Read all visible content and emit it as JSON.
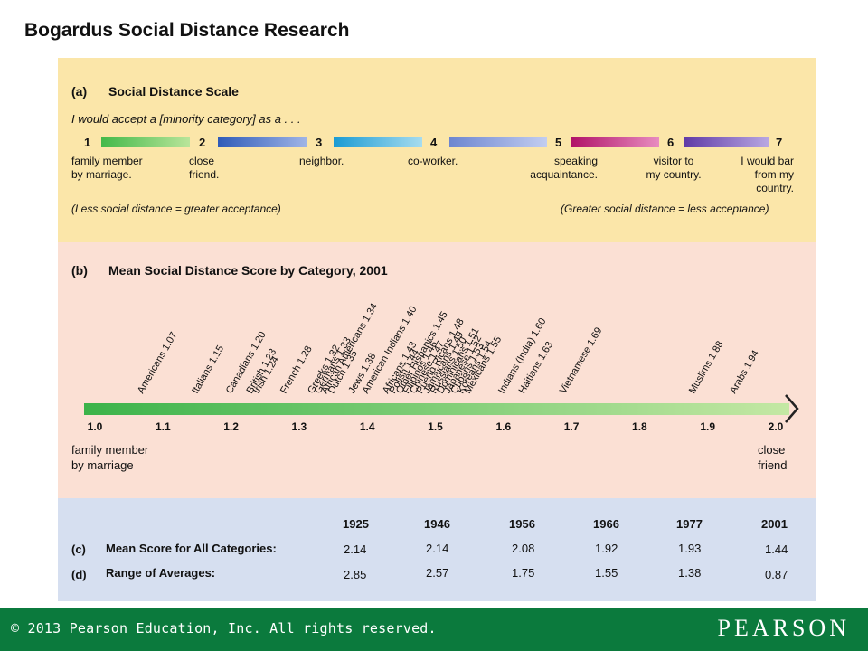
{
  "title": "Bogardus Social Distance Research",
  "panel_a": {
    "letter": "(a)",
    "heading": "Social Distance Scale",
    "prompt": "I would accept a [minority category] as a . . .",
    "steps": [
      {
        "num": "1",
        "label": "family member\nby marriage.",
        "color_start": "#43b94a",
        "color_end": "#b9e59a"
      },
      {
        "num": "2",
        "label": "close\nfriend.",
        "color_start": "#2f5bb8",
        "color_end": "#9fb4e6"
      },
      {
        "num": "3",
        "label": "neighbor.",
        "color_start": "#1a9bd3",
        "color_end": "#a6dcef"
      },
      {
        "num": "4",
        "label": "co-worker.",
        "color_start": "#6d86d0",
        "color_end": "#c2cdf0"
      },
      {
        "num": "5",
        "label": "speaking\nacquaintance.",
        "color_start": "#b01368",
        "color_end": "#e88cc0"
      },
      {
        "num": "6",
        "label": "visitor to\nmy country.",
        "color_start": "#5f3aa6",
        "color_end": "#b8a7e2"
      },
      {
        "num": "7",
        "label": "I would bar\nfrom my\ncountry.",
        "color_start": "",
        "color_end": ""
      }
    ],
    "note_left": "(Less social distance = greater acceptance)",
    "note_right": "(Greater social distance = less acceptance)"
  },
  "panel_b": {
    "letter": "(b)",
    "heading": "Mean Social Distance Score by Category, 2001",
    "left_end": "family member\nby marriage",
    "right_end": "close\nfriend"
  },
  "chart_data": {
    "type": "scatter",
    "title": "Mean Social Distance Score by Category, 2001",
    "xlim": [
      1.0,
      2.0
    ],
    "ticks": [
      "1.0",
      "1.1",
      "1.2",
      "1.3",
      "1.4",
      "1.5",
      "1.6",
      "1.7",
      "1.8",
      "1.9",
      "2.0"
    ],
    "categories": [
      {
        "name": "Americans",
        "value": "1.07"
      },
      {
        "name": "Italians",
        "value": "1.15"
      },
      {
        "name": "Canadians",
        "value": "1.20"
      },
      {
        "name": "British",
        "value": "1.23"
      },
      {
        "name": "Irish",
        "value": "1.24"
      },
      {
        "name": "French",
        "value": "1.28"
      },
      {
        "name": "Greeks",
        "value": "1.32"
      },
      {
        "name": "Germans",
        "value": "1.33"
      },
      {
        "name": "African Americans",
        "value": "1.34"
      },
      {
        "name": "Dutch",
        "value": "1.35"
      },
      {
        "name": "Jews",
        "value": "1.38"
      },
      {
        "name": "American Indians",
        "value": "1.40"
      },
      {
        "name": "Africans",
        "value": "1.43"
      },
      {
        "name": "Polish",
        "value": "1.44"
      },
      {
        "name": "Other Hispanics",
        "value": "1.45"
      },
      {
        "name": "Filipinos",
        "value": "1.46"
      },
      {
        "name": "Chinese",
        "value": "1.47"
      },
      {
        "name": "Puerto Ricans",
        "value": "1.48"
      },
      {
        "name": "Jamaicans",
        "value": "1.49"
      },
      {
        "name": "Russians",
        "value": "1.50"
      },
      {
        "name": "Dominicans",
        "value": "1.51"
      },
      {
        "name": "Japanese",
        "value": "1.52"
      },
      {
        "name": "Cubans",
        "value": "1.53"
      },
      {
        "name": "Koreans",
        "value": "1.54"
      },
      {
        "name": "Mexicans",
        "value": "1.55"
      },
      {
        "name": "Indians (India)",
        "value": "1.60"
      },
      {
        "name": "Haitians",
        "value": "1.63"
      },
      {
        "name": "Vietnamese",
        "value": "1.69"
      },
      {
        "name": "Muslims",
        "value": "1.88"
      },
      {
        "name": "Arabs",
        "value": "1.94"
      }
    ]
  },
  "panel_cd": {
    "years": [
      "1925",
      "1946",
      "1956",
      "1966",
      "1977",
      "2001"
    ],
    "rows": [
      {
        "letter": "(c)",
        "label": "Mean Score for All Categories:",
        "values": [
          "2.14",
          "2.14",
          "2.08",
          "1.92",
          "1.93",
          "1.44"
        ]
      },
      {
        "letter": "(d)",
        "label": "Range of Averages:",
        "values": [
          "2.85",
          "2.57",
          "1.75",
          "1.55",
          "1.38",
          "0.87"
        ]
      }
    ]
  },
  "footer": {
    "copyright": "© 2013  Pearson Education, Inc. All rights reserved.",
    "brand": "PEARSON",
    "color": "#0b7a3d"
  }
}
